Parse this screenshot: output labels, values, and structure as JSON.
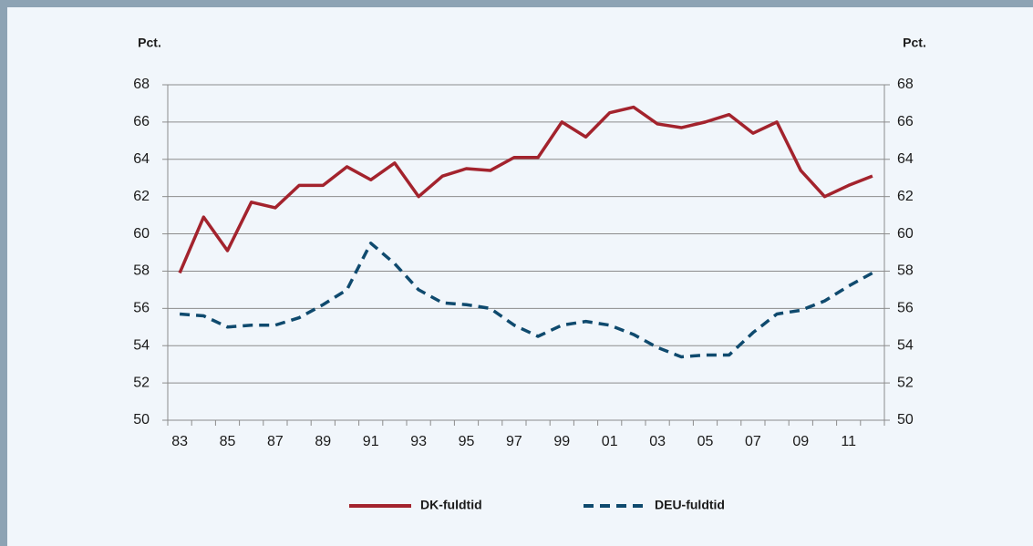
{
  "chart_data": {
    "type": "line",
    "y_label": "Pct.",
    "y2_label": "Pct.",
    "categories": [
      "83",
      null,
      "85",
      null,
      "87",
      null,
      "89",
      null,
      "91",
      null,
      "93",
      null,
      "95",
      null,
      "97",
      null,
      "99",
      null,
      "01",
      null,
      "03",
      null,
      "05",
      null,
      "07",
      null,
      "09",
      null,
      "11",
      null
    ],
    "series": [
      {
        "name": "DK-fuldtid",
        "color": "#a3232d",
        "line_style": "solid",
        "values": [
          57.9,
          60.9,
          59.1,
          61.7,
          61.4,
          62.6,
          62.6,
          63.6,
          62.9,
          63.8,
          62.0,
          63.1,
          63.5,
          63.4,
          64.1,
          64.1,
          66.0,
          65.2,
          66.5,
          66.8,
          65.9,
          65.7,
          66.0,
          66.4,
          65.4,
          66.0,
          63.4,
          62.0,
          62.6,
          63.1
        ]
      },
      {
        "name": "DEU-fuldtid",
        "color": "#0f4a6e",
        "line_style": "dashed",
        "values": [
          55.7,
          55.6,
          55.0,
          55.1,
          55.1,
          55.5,
          56.2,
          57.0,
          59.5,
          58.4,
          57.0,
          56.3,
          56.2,
          56.0,
          55.1,
          54.5,
          55.1,
          55.3,
          55.1,
          54.6,
          53.9,
          53.4,
          53.5,
          53.5,
          54.7,
          55.7,
          55.9,
          56.4,
          57.2,
          57.9
        ]
      }
    ],
    "ylim": [
      50,
      68
    ],
    "yticks": [
      50,
      52,
      54,
      56,
      58,
      60,
      62,
      64,
      66,
      68
    ],
    "y2lim": [
      50,
      68
    ],
    "y2ticks": [
      50,
      52,
      54,
      56,
      58,
      60,
      62,
      64,
      66,
      68
    ],
    "grid": true,
    "legend": "bottom"
  }
}
